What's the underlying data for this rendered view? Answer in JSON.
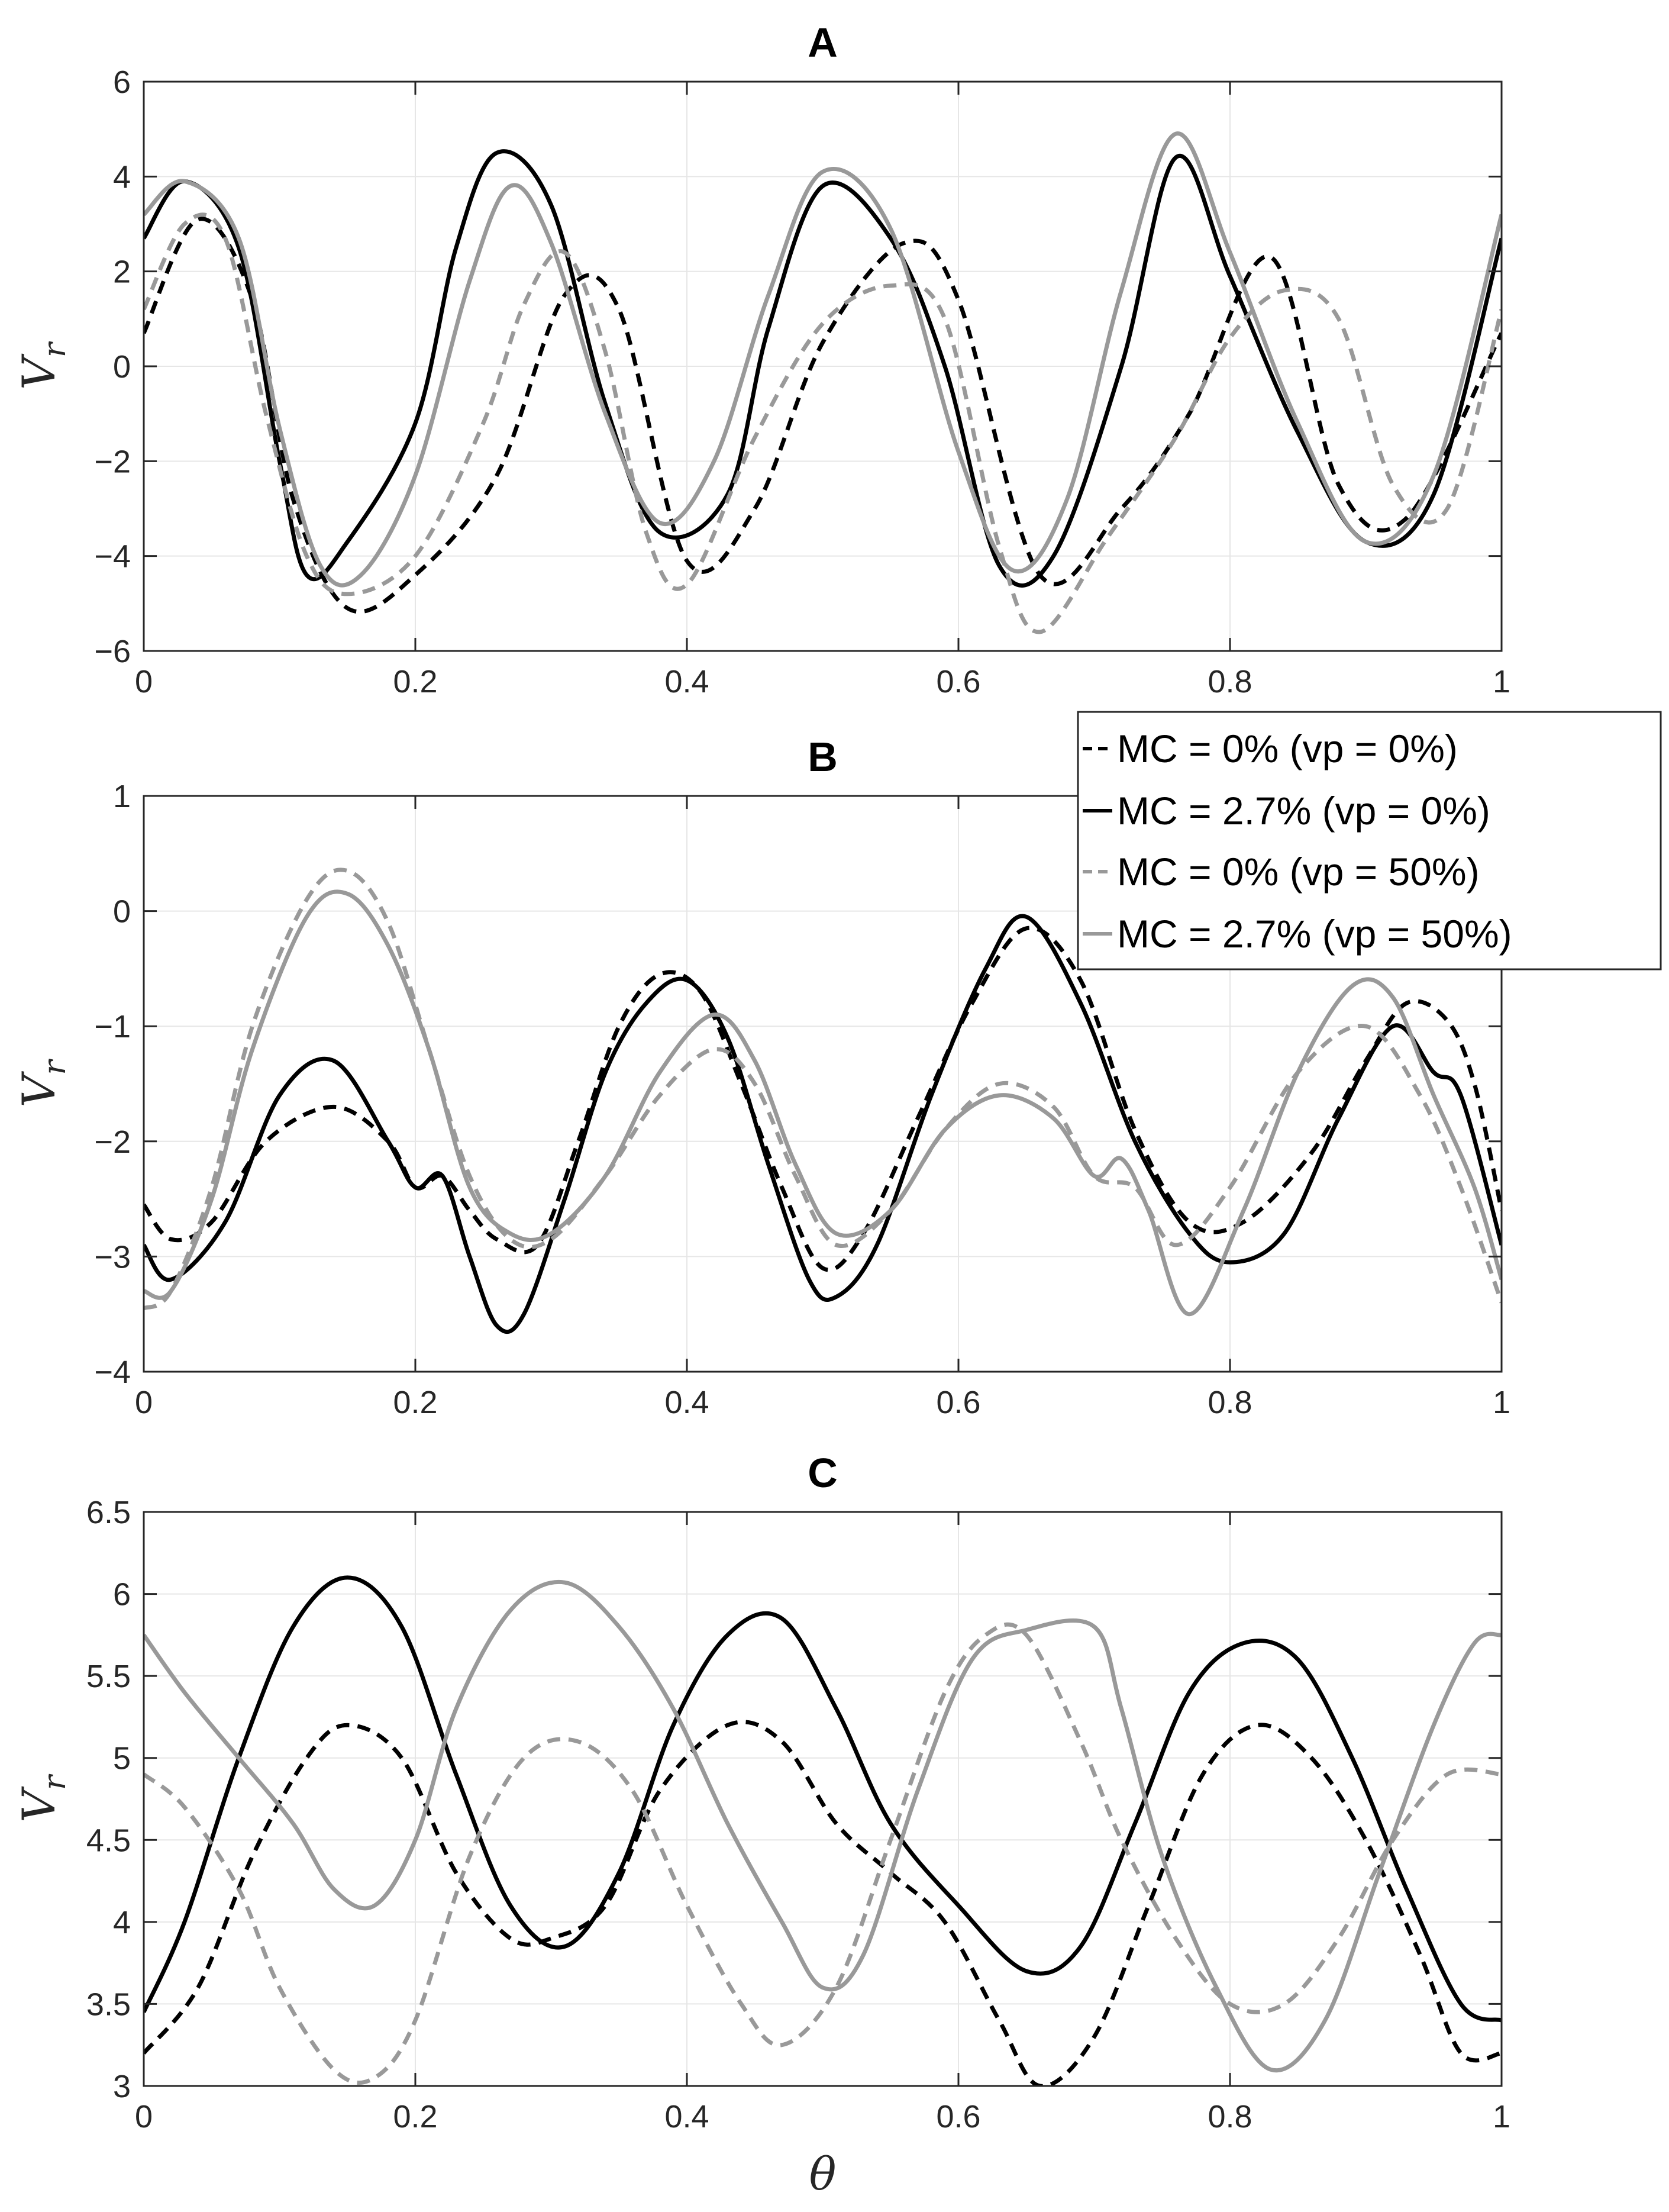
{
  "legend": {
    "entries": [
      {
        "label": "MC = 0% (vp = 0%)",
        "color": "#000000",
        "dash": true
      },
      {
        "label": "MC = 2.7% (vp = 0%)",
        "color": "#000000",
        "dash": false
      },
      {
        "label": "MC = 0% (vp = 50%)",
        "color": "#999999",
        "dash": true
      },
      {
        "label": "MC = 2.7% (vp = 50%)",
        "color": "#999999",
        "dash": false
      }
    ]
  },
  "chart_data": [
    {
      "type": "line",
      "title": "A",
      "xlabel": "",
      "ylabel": "V_r",
      "xlim": [
        0,
        1
      ],
      "ylim": [
        -6,
        6
      ],
      "xticks": [
        "0",
        "0.2",
        "0.4",
        "0.6",
        "0.8",
        "1"
      ],
      "yticks": [
        "−6",
        "−4",
        "−2",
        "0",
        "2",
        "4",
        "6"
      ],
      "series": [
        {
          "name": "MC = 0% (vp = 0%)",
          "x": [
            0,
            0.04,
            0.08,
            0.11,
            0.15,
            0.2,
            0.26,
            0.31,
            0.35,
            0.4,
            0.45,
            0.5,
            0.56,
            0.6,
            0.66,
            0.72,
            0.77,
            0.83,
            0.88,
            0.93,
            1.0
          ],
          "y": [
            0.7,
            3.1,
            1.4,
            -2.8,
            -5.1,
            -4.4,
            -2.3,
            1.5,
            1.2,
            -4.1,
            -3.0,
            0.5,
            2.6,
            1.4,
            -4.4,
            -3.0,
            -1.0,
            2.3,
            -2.5,
            -3.2,
            0.7
          ]
        },
        {
          "name": "MC = 2.7% (vp = 0%)",
          "x": [
            0,
            0.03,
            0.07,
            0.1,
            0.12,
            0.15,
            0.2,
            0.23,
            0.26,
            0.3,
            0.34,
            0.38,
            0.43,
            0.46,
            0.5,
            0.55,
            0.59,
            0.63,
            0.67,
            0.72,
            0.76,
            0.8,
            0.85,
            0.9,
            0.95,
            1.0
          ],
          "y": [
            2.7,
            3.9,
            2.5,
            -2.0,
            -4.4,
            -3.7,
            -1.2,
            2.5,
            4.5,
            3.4,
            -0.8,
            -3.5,
            -2.7,
            0.8,
            3.8,
            2.7,
            0.0,
            -4.2,
            -4.0,
            0.0,
            4.4,
            1.9,
            -1.4,
            -3.7,
            -2.7,
            2.7
          ]
        },
        {
          "name": "MC = 0% (vp = 50%)",
          "x": [
            0,
            0.03,
            0.06,
            0.09,
            0.12,
            0.15,
            0.2,
            0.25,
            0.28,
            0.31,
            0.34,
            0.37,
            0.4,
            0.45,
            0.5,
            0.55,
            0.59,
            0.63,
            0.66,
            0.71,
            0.76,
            0.8,
            0.84,
            0.88,
            0.92,
            0.96,
            1.0
          ],
          "y": [
            1.2,
            3.0,
            2.7,
            -1.0,
            -4.0,
            -4.8,
            -4.0,
            -1.2,
            1.3,
            2.4,
            0.3,
            -3.5,
            -4.6,
            -1.5,
            0.9,
            1.7,
            1.0,
            -3.8,
            -5.6,
            -3.6,
            -1.5,
            0.6,
            1.6,
            1.0,
            -2.5,
            -3.0,
            1.2
          ]
        },
        {
          "name": "MC = 2.7% (vp = 50%)",
          "x": [
            0,
            0.03,
            0.07,
            0.1,
            0.13,
            0.16,
            0.2,
            0.24,
            0.27,
            0.3,
            0.34,
            0.38,
            0.42,
            0.46,
            0.5,
            0.55,
            0.6,
            0.64,
            0.68,
            0.72,
            0.76,
            0.8,
            0.85,
            0.9,
            0.95,
            1.0
          ],
          "y": [
            3.2,
            3.9,
            2.7,
            -1.3,
            -4.2,
            -4.4,
            -2.3,
            1.8,
            3.8,
            2.6,
            -1.0,
            -3.3,
            -2.0,
            1.5,
            4.1,
            2.9,
            -1.8,
            -4.3,
            -2.8,
            1.6,
            4.9,
            2.4,
            -1.2,
            -3.7,
            -2.3,
            3.2
          ]
        }
      ]
    },
    {
      "type": "line",
      "title": "B",
      "xlabel": "",
      "ylabel": "V_r",
      "xlim": [
        0,
        1
      ],
      "ylim": [
        -4,
        1
      ],
      "xticks": [
        "0",
        "0.2",
        "0.4",
        "0.6",
        "0.8",
        "1"
      ],
      "yticks": [
        "−4",
        "−3",
        "−2",
        "−1",
        "0",
        "1"
      ],
      "series": [
        {
          "name": "MC = 0% (vp = 0%)",
          "x": [
            0,
            0.02,
            0.05,
            0.09,
            0.14,
            0.18,
            0.2,
            0.22,
            0.24,
            0.26,
            0.29,
            0.32,
            0.35,
            0.38,
            0.41,
            0.44,
            0.47,
            0.5,
            0.53,
            0.57,
            0.61,
            0.65,
            0.69,
            0.73,
            0.77,
            0.81,
            0.86,
            0.9,
            0.93,
            0.96,
            0.98,
            1.0
          ],
          "y": [
            -2.55,
            -2.85,
            -2.7,
            -2.0,
            -1.7,
            -2.0,
            -2.4,
            -2.3,
            -2.6,
            -2.85,
            -2.9,
            -2.0,
            -1.0,
            -0.55,
            -0.7,
            -1.5,
            -2.4,
            -3.1,
            -2.8,
            -1.8,
            -0.8,
            -0.15,
            -0.6,
            -1.9,
            -2.7,
            -2.7,
            -2.1,
            -1.3,
            -0.8,
            -0.95,
            -1.5,
            -2.6
          ]
        },
        {
          "name": "MC = 2.7% (vp = 0%)",
          "x": [
            0,
            0.02,
            0.06,
            0.1,
            0.14,
            0.18,
            0.2,
            0.22,
            0.24,
            0.26,
            0.28,
            0.31,
            0.34,
            0.37,
            0.4,
            0.43,
            0.46,
            0.49,
            0.51,
            0.54,
            0.58,
            0.62,
            0.65,
            0.69,
            0.73,
            0.77,
            0.8,
            0.84,
            0.88,
            0.92,
            0.95,
            0.97,
            1.0
          ],
          "y": [
            -2.9,
            -3.2,
            -2.7,
            -1.6,
            -1.3,
            -2.0,
            -2.4,
            -2.3,
            -3.0,
            -3.6,
            -3.5,
            -2.5,
            -1.4,
            -0.8,
            -0.6,
            -1.1,
            -2.2,
            -3.2,
            -3.35,
            -2.9,
            -1.6,
            -0.5,
            -0.05,
            -0.8,
            -2.0,
            -2.8,
            -3.05,
            -2.8,
            -1.8,
            -1.0,
            -1.4,
            -1.6,
            -2.9
          ]
        },
        {
          "name": "MC = 0% (vp = 50%)",
          "x": [
            0,
            0.02,
            0.05,
            0.08,
            0.12,
            0.15,
            0.18,
            0.21,
            0.24,
            0.27,
            0.3,
            0.34,
            0.38,
            0.42,
            0.45,
            0.48,
            0.51,
            0.55,
            0.59,
            0.63,
            0.67,
            0.7,
            0.73,
            0.76,
            0.8,
            0.85,
            0.9,
            0.94,
            0.97,
            1.0
          ],
          "y": [
            -3.45,
            -3.3,
            -2.4,
            -1.0,
            0.1,
            0.35,
            -0.1,
            -1.2,
            -2.3,
            -2.85,
            -2.85,
            -2.3,
            -1.6,
            -1.2,
            -1.5,
            -2.3,
            -2.9,
            -2.6,
            -1.9,
            -1.5,
            -1.7,
            -2.3,
            -2.4,
            -2.9,
            -2.4,
            -1.4,
            -1.0,
            -1.6,
            -2.4,
            -3.4
          ]
        },
        {
          "name": "MC = 2.7% (vp = 50%)",
          "x": [
            0,
            0.02,
            0.05,
            0.08,
            0.12,
            0.15,
            0.18,
            0.21,
            0.24,
            0.27,
            0.3,
            0.34,
            0.38,
            0.42,
            0.45,
            0.48,
            0.51,
            0.55,
            0.59,
            0.63,
            0.67,
            0.7,
            0.72,
            0.74,
            0.77,
            0.81,
            0.85,
            0.89,
            0.92,
            0.95,
            0.98,
            1.0
          ],
          "y": [
            -3.3,
            -3.3,
            -2.5,
            -1.2,
            -0.05,
            0.15,
            -0.3,
            -1.2,
            -2.4,
            -2.8,
            -2.8,
            -2.3,
            -1.4,
            -0.9,
            -1.3,
            -2.2,
            -2.8,
            -2.6,
            -1.9,
            -1.6,
            -1.8,
            -2.3,
            -2.15,
            -2.6,
            -3.5,
            -2.6,
            -1.4,
            -0.65,
            -0.75,
            -1.6,
            -2.4,
            -3.2
          ]
        }
      ]
    },
    {
      "type": "line",
      "title": "C",
      "xlabel": "θ",
      "ylabel": "V_r",
      "xlim": [
        0,
        1
      ],
      "ylim": [
        3,
        6.5
      ],
      "xticks": [
        "0",
        "0.2",
        "0.4",
        "0.6",
        "0.8",
        "1"
      ],
      "yticks": [
        "3",
        "3.5",
        "4",
        "4.5",
        "5",
        "5.5",
        "6",
        "6.5"
      ],
      "series": [
        {
          "name": "MC = 0% (vp = 0%)",
          "x": [
            0,
            0.04,
            0.08,
            0.12,
            0.15,
            0.19,
            0.23,
            0.27,
            0.3,
            0.34,
            0.38,
            0.43,
            0.47,
            0.51,
            0.55,
            0.59,
            0.63,
            0.66,
            0.7,
            0.74,
            0.78,
            0.82,
            0.86,
            0.9,
            0.94,
            0.97,
            1.0
          ],
          "y": [
            3.2,
            3.6,
            4.4,
            5.0,
            5.2,
            5.0,
            4.3,
            3.9,
            3.9,
            4.1,
            4.8,
            5.2,
            5.1,
            4.6,
            4.3,
            4.0,
            3.4,
            3.0,
            3.3,
            4.1,
            4.9,
            5.2,
            5.0,
            4.5,
            3.8,
            3.2,
            3.2
          ]
        },
        {
          "name": "MC = 2.7% (vp = 0%)",
          "x": [
            0,
            0.03,
            0.07,
            0.11,
            0.15,
            0.19,
            0.23,
            0.27,
            0.31,
            0.35,
            0.39,
            0.43,
            0.47,
            0.51,
            0.55,
            0.6,
            0.65,
            0.69,
            0.73,
            0.77,
            0.81,
            0.85,
            0.89,
            0.93,
            0.97,
            1.0
          ],
          "y": [
            3.45,
            4.0,
            5.0,
            5.8,
            6.1,
            5.8,
            4.9,
            4.1,
            3.85,
            4.3,
            5.2,
            5.75,
            5.85,
            5.3,
            4.6,
            4.1,
            3.7,
            3.85,
            4.6,
            5.4,
            5.7,
            5.6,
            5.0,
            4.2,
            3.5,
            3.4
          ]
        },
        {
          "name": "MC = 0% (vp = 50%)",
          "x": [
            0,
            0.03,
            0.07,
            0.1,
            0.14,
            0.17,
            0.2,
            0.24,
            0.28,
            0.32,
            0.36,
            0.4,
            0.44,
            0.47,
            0.51,
            0.55,
            0.59,
            0.62,
            0.65,
            0.69,
            0.72,
            0.76,
            0.8,
            0.84,
            0.88,
            0.92,
            0.96,
            1.0
          ],
          "y": [
            4.9,
            4.7,
            4.2,
            3.6,
            3.1,
            3.05,
            3.4,
            4.4,
            5.0,
            5.1,
            4.8,
            4.1,
            3.5,
            3.25,
            3.6,
            4.5,
            5.4,
            5.75,
            5.75,
            5.1,
            4.5,
            3.9,
            3.5,
            3.5,
            3.9,
            4.5,
            4.9,
            4.9
          ]
        },
        {
          "name": "MC = 2.7% (vp = 50%)",
          "x": [
            0,
            0.03,
            0.07,
            0.11,
            0.14,
            0.17,
            0.2,
            0.23,
            0.27,
            0.31,
            0.35,
            0.39,
            0.43,
            0.47,
            0.5,
            0.53,
            0.57,
            0.61,
            0.65,
            0.7,
            0.72,
            0.75,
            0.79,
            0.83,
            0.87,
            0.91,
            0.95,
            0.98,
            1.0
          ],
          "y": [
            5.75,
            5.4,
            5.0,
            4.6,
            4.2,
            4.1,
            4.5,
            5.3,
            5.9,
            6.07,
            5.8,
            5.3,
            4.6,
            4.0,
            3.6,
            3.8,
            4.8,
            5.6,
            5.78,
            5.8,
            5.3,
            4.4,
            3.6,
            3.1,
            3.4,
            4.3,
            5.2,
            5.7,
            5.75
          ]
        }
      ]
    }
  ]
}
